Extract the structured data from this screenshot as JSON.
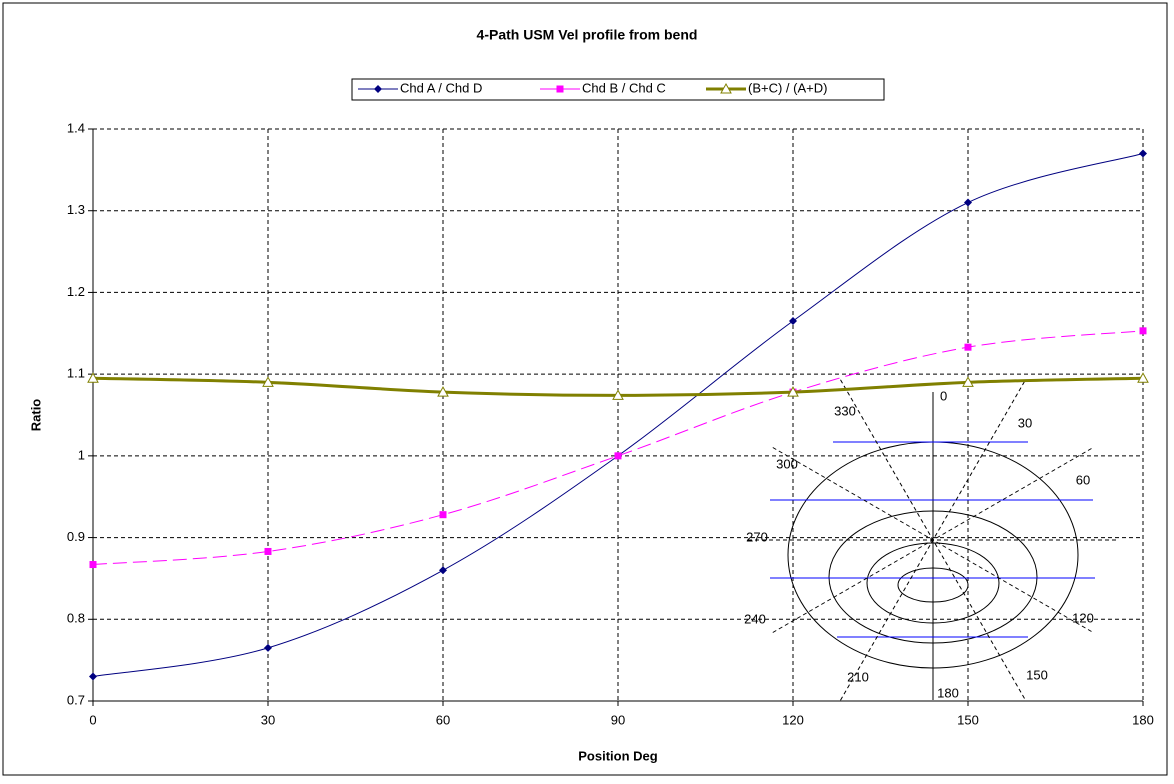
{
  "chart_data": {
    "type": "line",
    "title": "4-Path USM Vel profile from bend",
    "x_label": "Position Deg",
    "y_label": "Ratio",
    "x": [
      0,
      30,
      60,
      90,
      120,
      150,
      180
    ],
    "series": [
      {
        "name": "Chd A / Chd D",
        "color": "#000080",
        "marker": "diamond",
        "dash": false,
        "values": [
          0.73,
          0.765,
          0.86,
          1.0,
          1.165,
          1.31,
          1.37
        ]
      },
      {
        "name": "Chd B / Chd C",
        "color": "#ff00ff",
        "marker": "square",
        "dash": true,
        "values": [
          0.867,
          0.883,
          0.928,
          1.0,
          1.078,
          1.133,
          1.153
        ]
      },
      {
        "name": "(B+C) / (A+D)",
        "color": "#808000",
        "marker": "triangle",
        "dash": false,
        "values": [
          1.095,
          1.09,
          1.078,
          1.074,
          1.078,
          1.09,
          1.095
        ]
      }
    ],
    "xlim": [
      0,
      180
    ],
    "xticks": [
      0,
      30,
      60,
      90,
      120,
      150,
      180
    ],
    "ylim": [
      0.7,
      1.4
    ],
    "yticks": [
      0.7,
      0.8,
      0.9,
      1,
      1.1,
      1.2,
      1.3,
      1.4
    ],
    "grid": true,
    "legend": "top",
    "inset_labels": [
      "0",
      "30",
      "60",
      "120",
      "150",
      "180",
      "210",
      "240",
      "270",
      "300",
      "330"
    ]
  }
}
